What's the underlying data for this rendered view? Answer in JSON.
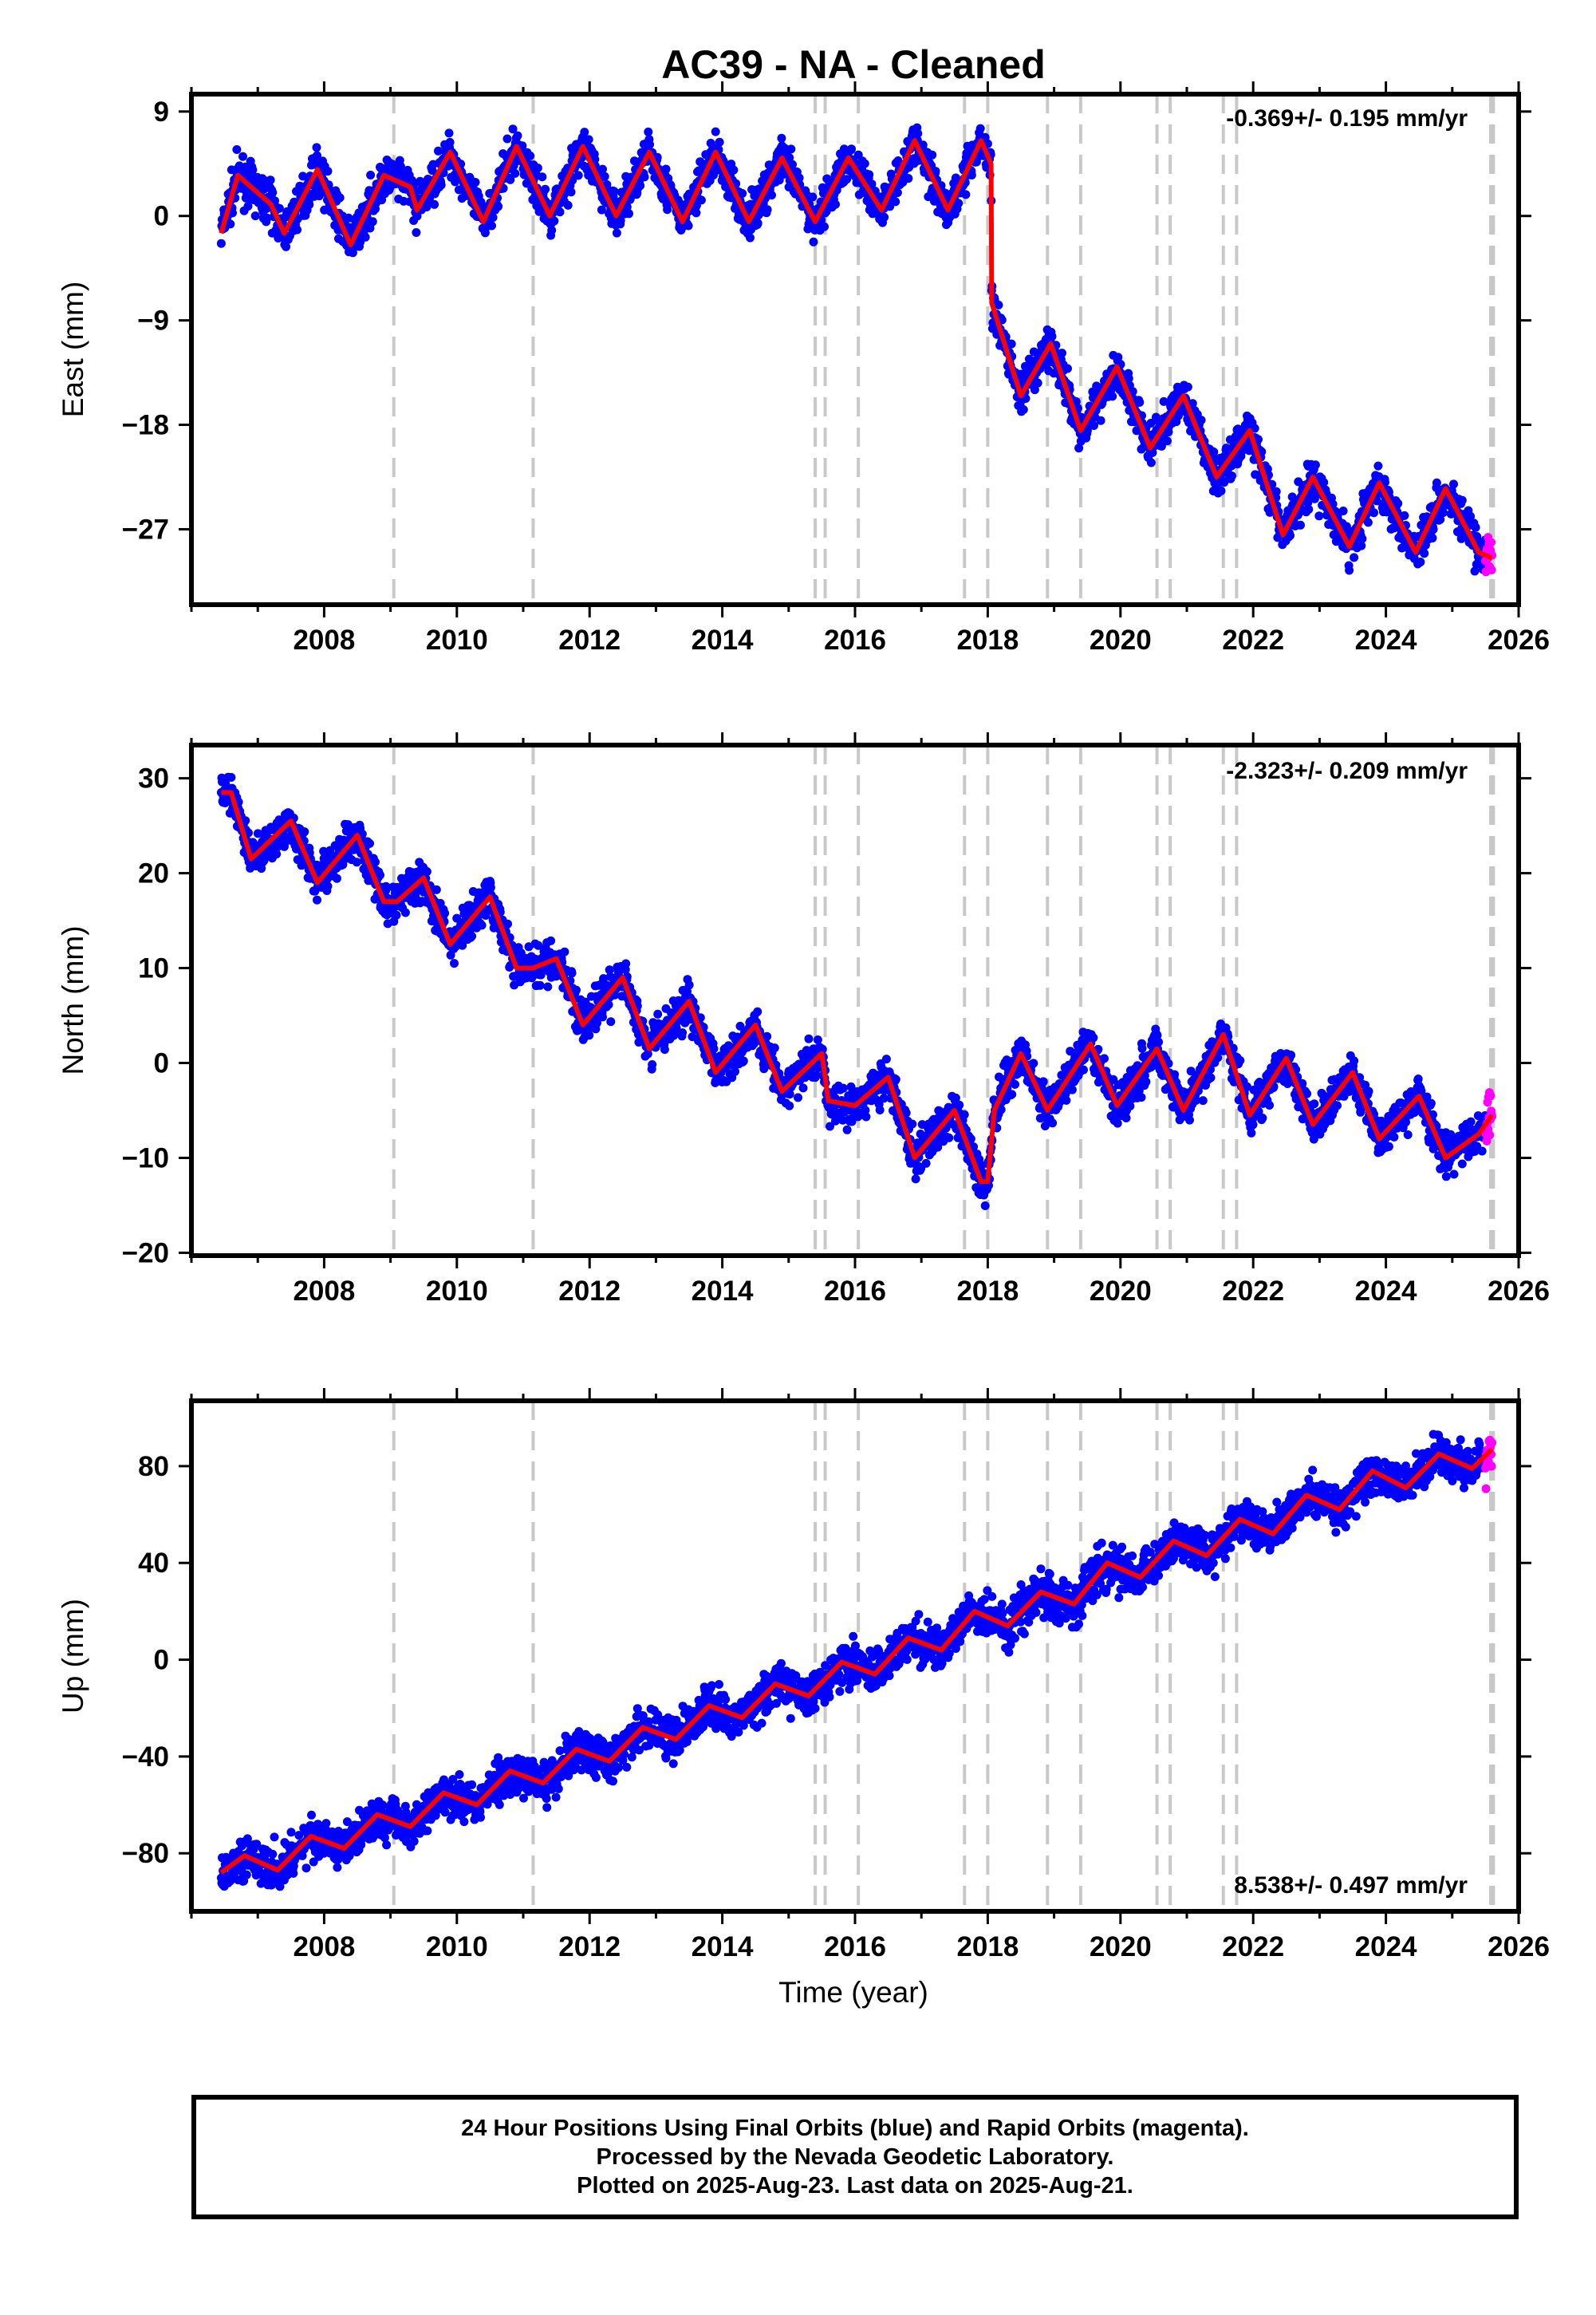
{
  "title": "AC39  - NA - Cleaned",
  "xlabel": "Time (year)",
  "caption": [
    "24 Hour Positions Using Final Orbits (blue) and Rapid Orbits (magenta).",
    "Processed by the Nevada Geodetic Laboratory.",
    "Plotted on 2025-Aug-23. Last data on 2025-Aug-21."
  ],
  "colors": {
    "final_orbits": "#0000ff",
    "rapid_orbits": "#ff00ff",
    "model_fit": "#ff0000",
    "steps": "#c8c8c8"
  },
  "chart_data": [
    {
      "type": "scatter",
      "ylabel": "East (mm)",
      "rate_label": "-0.369+/- 0.195 mm/yr",
      "xlim": [
        2006.0,
        2026.0
      ],
      "ylim": [
        -33.5,
        10.5
      ],
      "yticks": [
        9,
        0,
        -9,
        -18,
        -27
      ],
      "xticks": [
        2008,
        2010,
        2012,
        2014,
        2016,
        2018,
        2020,
        2022,
        2024,
        2026
      ],
      "model_points": [
        [
          2006.45,
          -1.5
        ],
        [
          2006.7,
          3.5
        ],
        [
          2007.2,
          1.0
        ],
        [
          2007.4,
          -1.5
        ],
        [
          2007.9,
          4.0
        ],
        [
          2008.4,
          -2.5
        ],
        [
          2008.9,
          3.5
        ],
        [
          2009.3,
          2.5
        ],
        [
          2009.4,
          0.5
        ],
        [
          2009.9,
          5.5
        ],
        [
          2010.4,
          -0.5
        ],
        [
          2010.9,
          6.0
        ],
        [
          2011.4,
          0.0
        ],
        [
          2011.9,
          6.0
        ],
        [
          2012.4,
          0.0
        ],
        [
          2012.9,
          5.5
        ],
        [
          2013.4,
          -0.5
        ],
        [
          2013.9,
          5.5
        ],
        [
          2014.4,
          -0.5
        ],
        [
          2014.9,
          5.0
        ],
        [
          2015.4,
          -0.5
        ],
        [
          2015.9,
          5.0
        ],
        [
          2016.4,
          0.5
        ],
        [
          2016.9,
          6.5
        ],
        [
          2017.4,
          0.5
        ],
        [
          2017.9,
          6.5
        ],
        [
          2018.05,
          4.5
        ],
        [
          2018.06,
          -7.5
        ],
        [
          2018.5,
          -15.5
        ],
        [
          2018.95,
          -11.0
        ],
        [
          2019.4,
          -18.5
        ],
        [
          2019.95,
          -13.0
        ],
        [
          2020.45,
          -20.0
        ],
        [
          2020.95,
          -15.5
        ],
        [
          2021.45,
          -22.5
        ],
        [
          2021.95,
          -18.5
        ],
        [
          2022.45,
          -27.5
        ],
        [
          2022.9,
          -22.5
        ],
        [
          2023.45,
          -28.5
        ],
        [
          2023.9,
          -23.0
        ],
        [
          2024.45,
          -29.0
        ],
        [
          2024.9,
          -23.5
        ],
        [
          2025.4,
          -29.0
        ],
        [
          2025.6,
          -29.5
        ]
      ],
      "steps": [
        2009.05,
        2011.15,
        2015.4,
        2015.55,
        2016.05,
        2017.65,
        2018.0,
        2018.9,
        2019.4,
        2020.55,
        2020.75,
        2021.55,
        2021.75,
        2025.58,
        2025.62
      ]
    },
    {
      "type": "scatter",
      "ylabel": "North (mm)",
      "rate_label": "-2.323+/- 0.209 mm/yr",
      "xlim": [
        2006.0,
        2026.0
      ],
      "ylim": [
        -20.3,
        33.5
      ],
      "yticks": [
        30,
        20,
        10,
        0,
        -10,
        -20
      ],
      "xticks": [
        2008,
        2010,
        2012,
        2014,
        2016,
        2018,
        2020,
        2022,
        2024,
        2026
      ],
      "model_points": [
        [
          2006.45,
          28.5
        ],
        [
          2006.6,
          28.5
        ],
        [
          2006.9,
          21.5
        ],
        [
          2007.5,
          25.5
        ],
        [
          2007.9,
          19.0
        ],
        [
          2008.5,
          24.0
        ],
        [
          2008.9,
          17.0
        ],
        [
          2009.1,
          17.0
        ],
        [
          2009.5,
          19.5
        ],
        [
          2009.9,
          12.5
        ],
        [
          2010.5,
          17.5
        ],
        [
          2010.9,
          10.0
        ],
        [
          2011.15,
          10.0
        ],
        [
          2011.5,
          11.0
        ],
        [
          2011.9,
          4.0
        ],
        [
          2012.5,
          9.0
        ],
        [
          2012.9,
          1.5
        ],
        [
          2013.5,
          6.5
        ],
        [
          2013.9,
          -1.0
        ],
        [
          2014.5,
          4.0
        ],
        [
          2014.9,
          -3.0
        ],
        [
          2015.5,
          1.0
        ],
        [
          2015.6,
          -4.0
        ],
        [
          2016.0,
          -4.5
        ],
        [
          2016.5,
          -1.5
        ],
        [
          2016.9,
          -10.0
        ],
        [
          2017.5,
          -5.0
        ],
        [
          2017.9,
          -12.5
        ],
        [
          2018.0,
          -12.5
        ],
        [
          2018.1,
          -5.0
        ],
        [
          2018.5,
          1.0
        ],
        [
          2018.9,
          -5.0
        ],
        [
          2019.55,
          2.0
        ],
        [
          2019.95,
          -4.5
        ],
        [
          2020.55,
          1.5
        ],
        [
          2020.95,
          -5.0
        ],
        [
          2021.55,
          3.0
        ],
        [
          2021.95,
          -5.5
        ],
        [
          2022.5,
          0.5
        ],
        [
          2022.9,
          -6.5
        ],
        [
          2023.5,
          -1.0
        ],
        [
          2023.9,
          -8.0
        ],
        [
          2024.5,
          -3.5
        ],
        [
          2024.9,
          -10.0
        ],
        [
          2025.4,
          -7.5
        ],
        [
          2025.6,
          -5.5
        ]
      ],
      "steps": [
        2009.05,
        2011.15,
        2015.4,
        2015.55,
        2016.05,
        2017.65,
        2018.0,
        2018.9,
        2019.4,
        2020.55,
        2020.75,
        2021.55,
        2021.75,
        2025.58,
        2025.62
      ]
    },
    {
      "type": "scatter",
      "ylabel": "Up (mm)",
      "rate_label": "8.538+/- 0.497 mm/yr",
      "xlim": [
        2006.0,
        2026.0
      ],
      "ylim": [
        -104.0,
        107.0
      ],
      "yticks": [
        80,
        40,
        0,
        -40,
        -80
      ],
      "xticks": [
        2008,
        2010,
        2012,
        2014,
        2016,
        2018,
        2020,
        2022,
        2024,
        2026
      ],
      "model_points": [
        [
          2006.45,
          -88
        ],
        [
          2006.8,
          -81
        ],
        [
          2007.3,
          -87
        ],
        [
          2007.8,
          -73
        ],
        [
          2008.3,
          -78
        ],
        [
          2008.8,
          -64
        ],
        [
          2009.3,
          -69
        ],
        [
          2009.8,
          -55
        ],
        [
          2010.3,
          -60
        ],
        [
          2010.8,
          -46
        ],
        [
          2011.3,
          -51
        ],
        [
          2011.8,
          -37
        ],
        [
          2012.3,
          -42
        ],
        [
          2012.8,
          -28
        ],
        [
          2013.3,
          -33
        ],
        [
          2013.8,
          -19
        ],
        [
          2014.3,
          -24
        ],
        [
          2014.8,
          -10
        ],
        [
          2015.3,
          -15
        ],
        [
          2015.8,
          -1
        ],
        [
          2016.3,
          -6
        ],
        [
          2016.8,
          9
        ],
        [
          2017.3,
          4
        ],
        [
          2017.8,
          20
        ],
        [
          2018.3,
          14
        ],
        [
          2018.8,
          28
        ],
        [
          2019.3,
          23
        ],
        [
          2019.8,
          40
        ],
        [
          2020.3,
          34
        ],
        [
          2020.8,
          49
        ],
        [
          2021.3,
          43
        ],
        [
          2021.8,
          58
        ],
        [
          2022.3,
          52
        ],
        [
          2022.8,
          68
        ],
        [
          2023.3,
          62
        ],
        [
          2023.8,
          78
        ],
        [
          2024.3,
          71
        ],
        [
          2024.8,
          85
        ],
        [
          2025.3,
          79
        ],
        [
          2025.6,
          87
        ]
      ],
      "steps": [
        2009.05,
        2011.15,
        2015.4,
        2015.55,
        2016.05,
        2017.65,
        2018.0,
        2018.9,
        2019.4,
        2020.55,
        2020.75,
        2021.55,
        2021.75,
        2025.58,
        2025.62
      ]
    }
  ]
}
